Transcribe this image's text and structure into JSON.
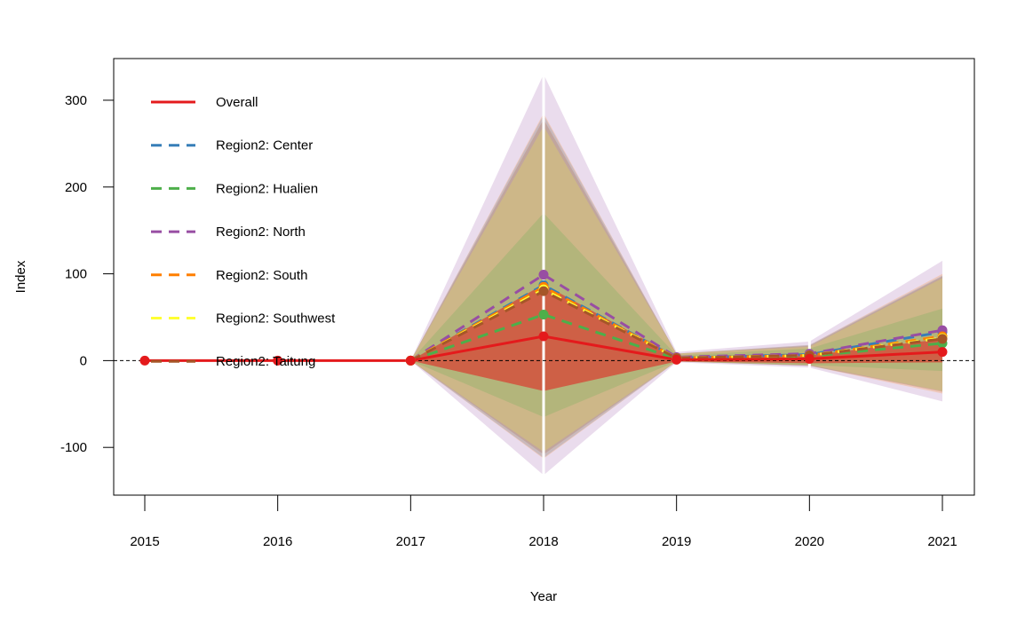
{
  "chart_data": {
    "type": "line",
    "title": "",
    "xlabel": "Year",
    "ylabel": "Index",
    "x": [
      2015,
      2016,
      2017,
      2018,
      2019,
      2020,
      2021
    ],
    "x_tick_labels": [
      "2015",
      "2016",
      "2017",
      "2018",
      "2019",
      "2020",
      "2021"
    ],
    "ylim": [
      -155,
      348
    ],
    "y_ticks": [
      -100,
      0,
      100,
      200,
      300
    ],
    "y_tick_labels": [
      "-100",
      "0",
      "100",
      "200",
      "300"
    ],
    "reference_line": 0,
    "grid": false,
    "legend_position": "top-left",
    "series": [
      {
        "name": "Overall",
        "color": "#e41a1c",
        "dash": "solid",
        "values": [
          0,
          0,
          0,
          28,
          1,
          2,
          10
        ],
        "band_low": [
          0,
          0,
          0,
          -35,
          -1,
          -3,
          -2
        ],
        "band_high": [
          0,
          0,
          0,
          88,
          4,
          6,
          25
        ]
      },
      {
        "name": "Region2: Center",
        "color": "#377eb8",
        "dash": "dashed",
        "values": [
          null,
          null,
          0,
          87,
          3,
          7,
          33
        ],
        "band_low": [
          null,
          null,
          0,
          -112,
          -1,
          -6,
          -35
        ],
        "band_high": [
          null,
          null,
          0,
          283,
          8,
          18,
          98
        ]
      },
      {
        "name": "Region2: Hualien",
        "color": "#4daf4a",
        "dash": "dashed",
        "values": [
          null,
          null,
          0,
          53,
          2,
          5,
          20
        ],
        "band_low": [
          null,
          null,
          0,
          -65,
          -1,
          -5,
          -12
        ],
        "band_high": [
          null,
          null,
          0,
          170,
          6,
          14,
          60
        ]
      },
      {
        "name": "Region2: North",
        "color": "#984ea3",
        "dash": "dashed",
        "values": [
          null,
          null,
          0,
          99,
          4,
          8,
          35
        ],
        "band_low": [
          null,
          null,
          0,
          -132,
          -2,
          -8,
          -47
        ],
        "band_high": [
          null,
          null,
          0,
          330,
          10,
          22,
          115
        ]
      },
      {
        "name": "Region2: South",
        "color": "#ff7f00",
        "dash": "dashed",
        "values": [
          null,
          null,
          0,
          85,
          3,
          6,
          28
        ],
        "band_low": [
          null,
          null,
          0,
          -113,
          -1,
          -6,
          -38
        ],
        "band_high": [
          null,
          null,
          0,
          285,
          8,
          18,
          100
        ]
      },
      {
        "name": "Region2: Southwest",
        "color": "#ffff33",
        "dash": "dashed",
        "values": [
          null,
          null,
          0,
          82,
          3,
          6,
          26
        ],
        "band_low": [
          null,
          null,
          0,
          -105,
          -1,
          -5,
          -35
        ],
        "band_high": [
          null,
          null,
          0,
          270,
          8,
          16,
          95
        ]
      },
      {
        "name": "Region2: Taitung",
        "color": "#a65628",
        "dash": "dashed",
        "values": [
          null,
          null,
          0,
          80,
          3,
          6,
          25
        ],
        "band_low": [
          null,
          null,
          0,
          -108,
          -1,
          -6,
          -36
        ],
        "band_high": [
          null,
          null,
          0,
          278,
          8,
          17,
          97
        ]
      }
    ]
  }
}
